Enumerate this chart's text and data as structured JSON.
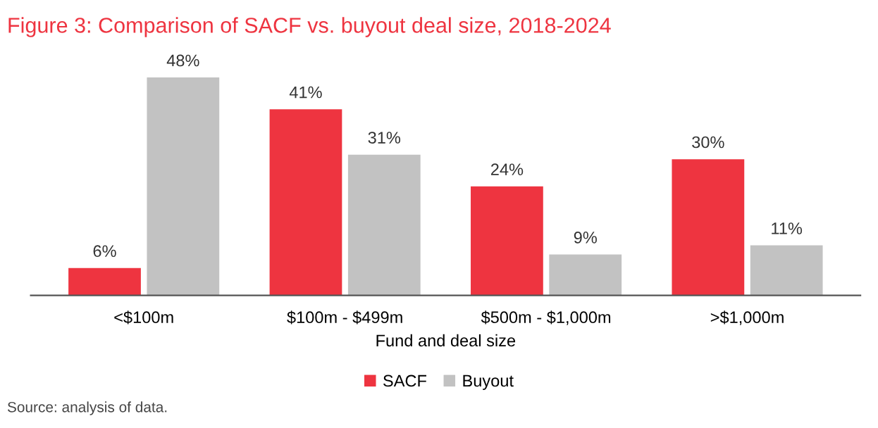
{
  "chart_data": {
    "type": "bar",
    "title": "Figure 3: Comparison of SACF vs. buyout deal size, 2018-2024",
    "xlabel": "Fund and deal size",
    "categories": [
      "<$100m",
      "$100m - $499m",
      "$500m - $1,000m",
      ">$1,000m"
    ],
    "series": [
      {
        "name": "SACF",
        "color": "#ee3440",
        "values": [
          6,
          41,
          24,
          30
        ],
        "value_labels": [
          "6%",
          "41%",
          "24%",
          "30%"
        ]
      },
      {
        "name": "Buyout",
        "color": "#c2c2c2",
        "values": [
          48,
          31,
          9,
          11
        ],
        "value_labels": [
          "48%",
          "31%",
          "9%",
          "11%"
        ]
      }
    ],
    "legend": "bottom",
    "grid": false,
    "tick_labels": "x",
    "annotations": [
      "Source: analysis of data."
    ]
  }
}
